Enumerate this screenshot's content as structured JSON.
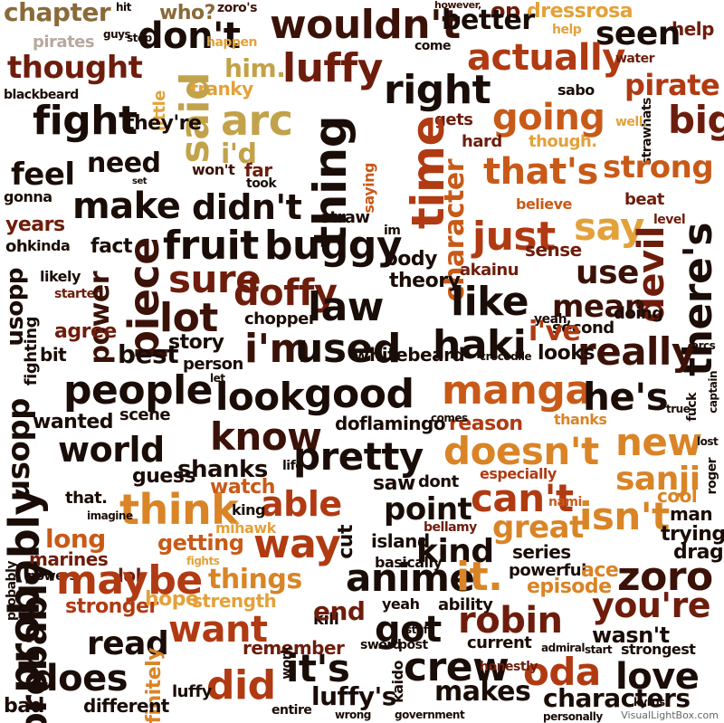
{
  "words": {
    "chapter": "chapter",
    "wouldnt": "wouldn't",
    "dont": "don't",
    "thought": "thought",
    "luffy": "luffy",
    "actually": "actually",
    "seen": "seen",
    "better": "better",
    "right": "right",
    "fight": "fight",
    "said": "said",
    "arc": "arc",
    "going": "going",
    "pirate": "pirate",
    "big": "big",
    "thing": "thing",
    "time": "time",
    "character": "character",
    "thats": "that's",
    "strong": "strong",
    "feel": "feel",
    "need": "need",
    "make": "make",
    "didnt": "didn't",
    "say": "say",
    "fruit": "fruit",
    "buggy": "buggy",
    "just": "just",
    "devil": "devil",
    "theres": "there's",
    "piece": "piece",
    "sure": "sure",
    "like": "like",
    "use": "use",
    "power": "power",
    "doffy": "doffy",
    "law": "law",
    "mean": "mean",
    "lot": "lot",
    "im": "i'm",
    "used": "used",
    "haki": "haki",
    "really": "really",
    "ive": "i've",
    "best": "best",
    "people": "people",
    "look": "look",
    "good": "good",
    "manga": "manga",
    "hes": "he's",
    "usopp": "usopp",
    "world": "world",
    "know": "know",
    "pretty": "pretty",
    "doesnt": "doesn't",
    "new": "new",
    "sanji": "sanji",
    "probably": "probably",
    "think": "think",
    "able": "able",
    "cant": "can't",
    "isnt": "isn't",
    "way": "way",
    "point": "point",
    "maybe": "maybe",
    "things": "things",
    "anime": "anime",
    "it": "it.",
    "zoro": "zoro",
    "youre": "you're",
    "want": "want",
    "got": "got",
    "robin": "robin",
    "read": "read",
    "end": "end",
    "crew": "crew",
    "oda": "oda",
    "love": "love",
    "does": "does",
    "its": "it's",
    "did": "did",
    "makes": "makes",
    "luffys": "luffy's",
    "characters": "characters",
    "long": "long",
    "great": "great",
    "kind": "kind",
    "shanks": "shanks",
    "reason": "reason",
    "story": "story",
    "doflamingo": "doflamingo",
    "wasnt": "wasn't",
    "ace": "ace",
    "episode": "episode",
    "stronger": "stronger",
    "remember": "remember",
    "current": "current",
    "strength": "strength",
    "getting": "getting",
    "years": "years",
    "saying": "saying",
    "believe": "believe",
    "mihawk": "mihawk",
    "dressrosa": "dressrosa",
    "op": "op",
    "him": "him.",
    "franky": "franky",
    "blackbeard": "blackbeard",
    "theyre": "they're",
    "sabo": "sabo",
    "strawhats": "strawhats",
    "little": "little",
    "id": "i'd",
    "gonna": "gonna",
    "fighting": "fighting",
    "agree": "agree",
    "bit": "bit",
    "wanted": "wanted",
    "guess": "guess",
    "watch": "watch",
    "that2": "that.",
    "island": "island",
    "series": "series",
    "hope": "hope",
    "kill": "kill",
    "post": "post",
    "wont": "won't",
    "sense": "sense",
    "akainu": "akainu",
    "looks": "looks",
    "theory": "theory",
    "chopper": "chopper",
    "whitebeard": "whitebeard",
    "crocodile": "crocodile",
    "straw": "straw",
    "gets": "gets",
    "hard": "hard",
    "though": "though.",
    "well": "well.",
    "beat": "beat",
    "level": "level",
    "second": "second",
    "doing": "doing",
    "yeah": "yeah,",
    "person": "person",
    "let": "let",
    "scene": "scene",
    "life": "life",
    "dont2": "dont",
    "saw": "saw",
    "especially": "especially",
    "nami": "nami",
    "cool": "cool",
    "man": "man",
    "trying": "trying",
    "dragon": "dragon",
    "king": "king",
    "lol": "lol",
    "powers": "powers",
    "basically": "basically",
    "powerful": "powerful",
    "ability": "ability",
    "yeah2": "yeah",
    "different": "different",
    "bad": "bad",
    "definitely": "definitely",
    "stuff": "stuff",
    "work": "work",
    "strongest": "strongest",
    "start": "start",
    "kaido": "kaido",
    "pirates": "pirates",
    "who": "who?",
    "come": "come",
    "far": "far",
    "took": "took",
    "kinda": "kinda",
    "oh": "oh",
    "likely": "likely",
    "started": "started",
    "fact": "fact",
    "body": "body",
    "cut": "cut",
    "bellamy": "bellamy",
    "imagine": "imagine",
    "marines": "marines",
    "fights": "fights",
    "admiral": "admiral",
    "kyros": "kyros",
    "water": "water",
    "help": "help",
    "help2": "help",
    "imsmall": "im",
    "comes": "comes",
    "thanks": "thanks",
    "set": "set",
    "true": "true",
    "fuck": "fuck",
    "captain": "captain",
    "lost": "lost",
    "roger": "roger",
    "sword": "sword",
    "entire": "entire",
    "wrong": "wrong",
    "government": "government",
    "honestly": "honestly",
    "personally": "personally",
    "thriller": "thriller",
    "arcs": "arcs",
    "happen": "happen",
    "guys": "guys",
    "stop": "stop",
    "hit": "hit",
    "zoros": "zoro's",
    "however": "however,"
  },
  "watermark": "VisualLightBox.com"
}
